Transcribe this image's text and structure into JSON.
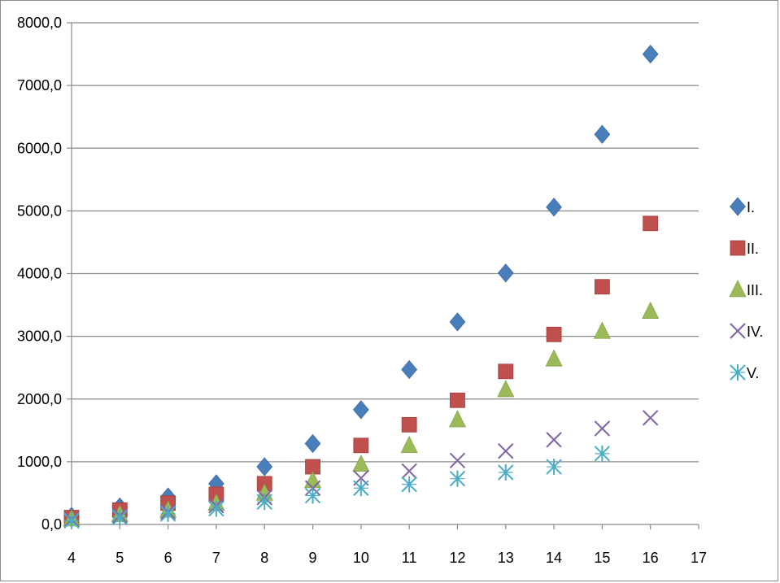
{
  "chart_data": {
    "type": "scatter",
    "x": [
      4,
      5,
      6,
      7,
      8,
      9,
      10,
      11,
      12,
      13,
      14,
      15,
      16
    ],
    "xlim": [
      4,
      17
    ],
    "xticks": [
      "4",
      "5",
      "6",
      "7",
      "8",
      "9",
      "10",
      "11",
      "12",
      "13",
      "14",
      "15",
      "16",
      "17"
    ],
    "ylim": [
      0,
      8000
    ],
    "yticks": [
      "0,0",
      "1000,0",
      "2000,0",
      "3000,0",
      "4000,0",
      "5000,0",
      "6000,0",
      "7000,0",
      "8000,0"
    ],
    "grid": "horizontal",
    "legend_position": "right",
    "series": [
      {
        "name": "I.",
        "marker": "diamond",
        "color": "#4a7ebb",
        "values": [
          130,
          280,
          440,
          650,
          920,
          1290,
          1830,
          2470,
          3230,
          4010,
          5060,
          6220,
          7500
        ]
      },
      {
        "name": "II.",
        "marker": "square",
        "color": "#c0504d",
        "values": [
          110,
          230,
          340,
          480,
          650,
          920,
          1260,
          1590,
          1980,
          2440,
          3030,
          3790,
          4800
        ]
      },
      {
        "name": "III.",
        "marker": "triangle",
        "color": "#9bbb59",
        "values": [
          90,
          160,
          230,
          340,
          500,
          700,
          960,
          1260,
          1670,
          2150,
          2640,
          3080,
          3400
        ]
      },
      {
        "name": "IV.",
        "marker": "x",
        "color": "#8064a2",
        "values": [
          80,
          140,
          200,
          300,
          430,
          580,
          740,
          850,
          1020,
          1170,
          1350,
          1530,
          1700
        ]
      },
      {
        "name": "V.",
        "marker": "asterisk",
        "color": "#4bacc6",
        "values": [
          60,
          110,
          170,
          250,
          360,
          460,
          580,
          640,
          730,
          830,
          920,
          1130,
          null
        ]
      }
    ]
  }
}
